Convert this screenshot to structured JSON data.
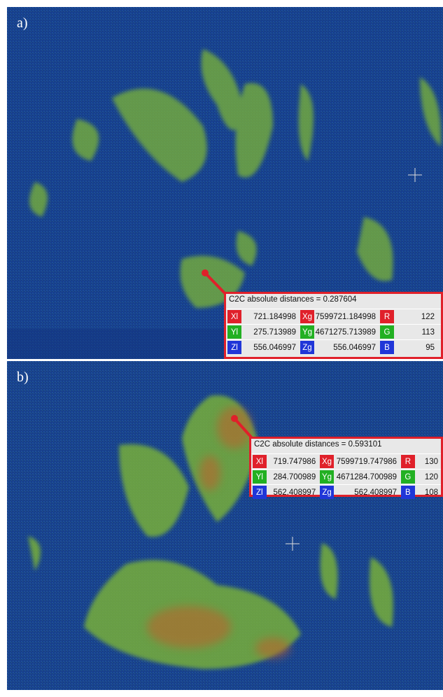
{
  "panels": [
    {
      "label": "a)",
      "tooltip": {
        "title": "C2C absolute distances = 0.287604",
        "rows": [
          {
            "local_key": "Xl",
            "local": "721.184998",
            "global_key": "Xg",
            "global": "7599721.184998",
            "color_key": "R",
            "color": "122"
          },
          {
            "local_key": "Yl",
            "local": "275.713989",
            "global_key": "Yg",
            "global": "4671275.713989",
            "color_key": "G",
            "color": "113"
          },
          {
            "local_key": "Zl",
            "local": "556.046997",
            "global_key": "Zg",
            "global": "556.046997",
            "color_key": "B",
            "color": "95"
          }
        ]
      }
    },
    {
      "label": "b)",
      "tooltip": {
        "title": "C2C absolute distances = 0.593101",
        "rows": [
          {
            "local_key": "Xl",
            "local": "719.747986",
            "global_key": "Xg",
            "global": "7599719.747986",
            "color_key": "R",
            "color": "130"
          },
          {
            "local_key": "Yl",
            "local": "284.700989",
            "global_key": "Yg",
            "global": "4671284.700989",
            "color_key": "G",
            "color": "120"
          },
          {
            "local_key": "Zl",
            "local": "562.408997",
            "global_key": "Zg",
            "global": "562.408997",
            "color_key": "B",
            "color": "108"
          }
        ]
      }
    }
  ]
}
